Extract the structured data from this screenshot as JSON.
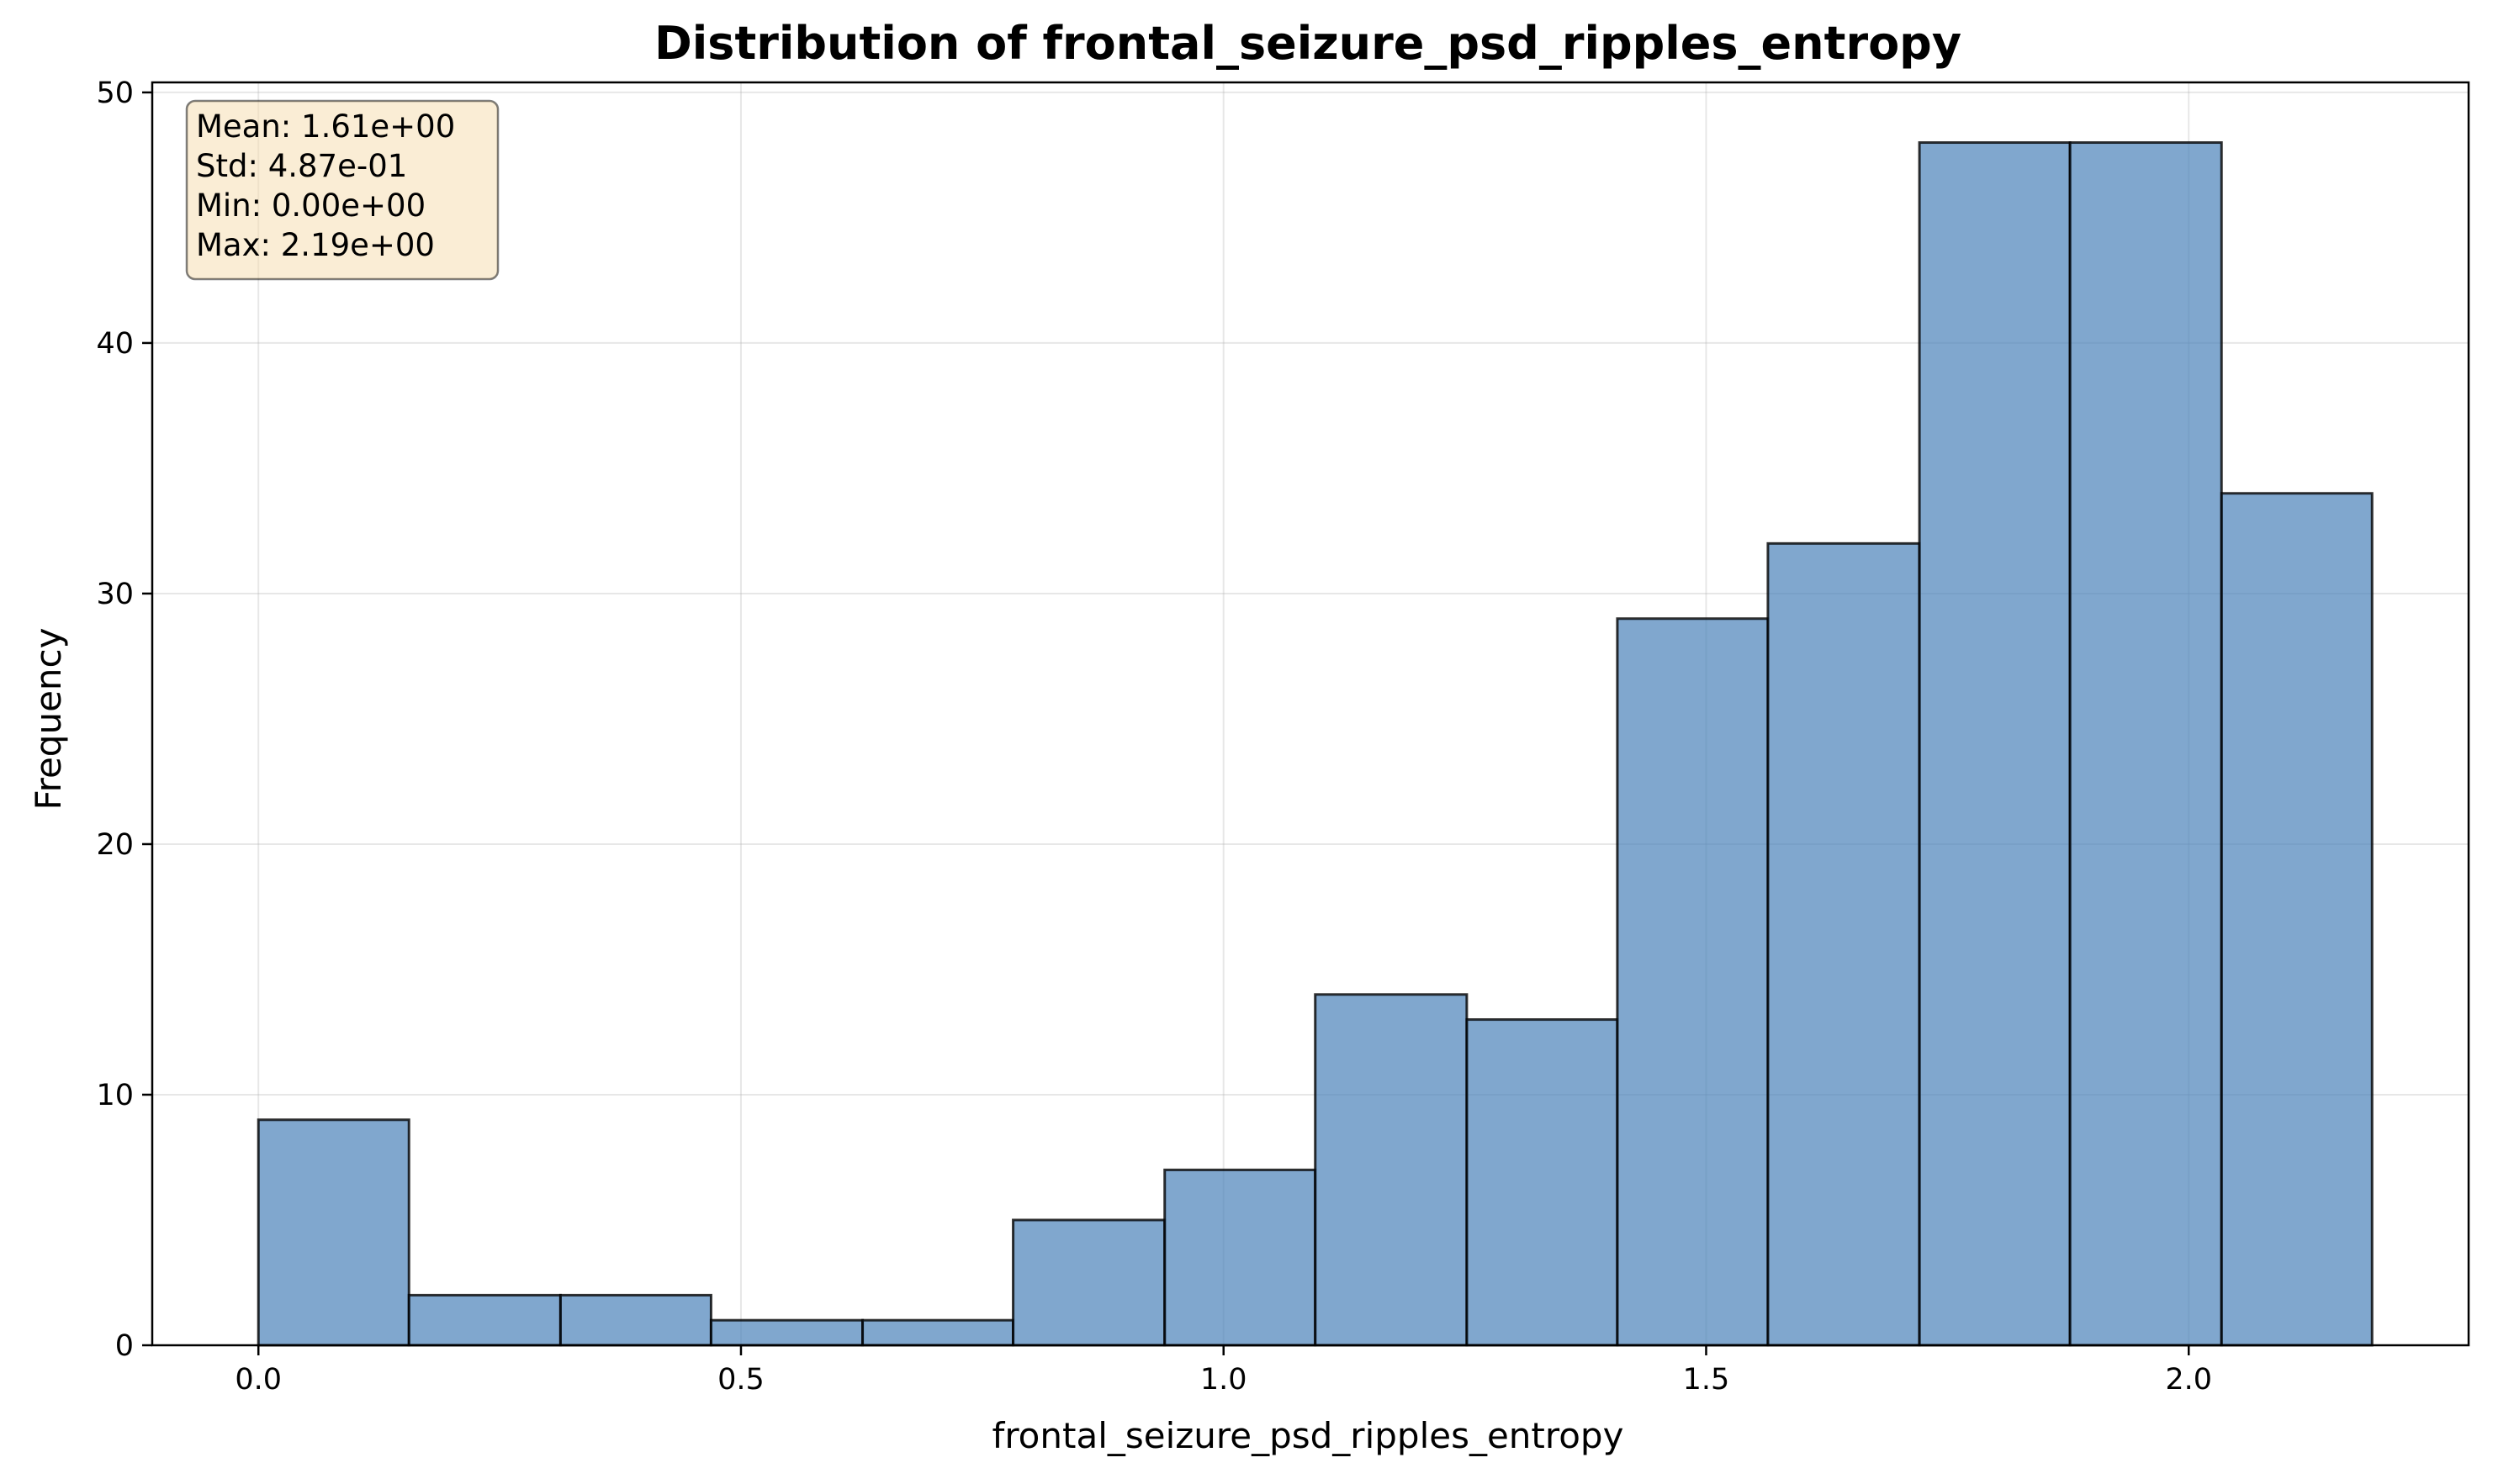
{
  "chart_data": {
    "type": "bar",
    "title": "Distribution of frontal_seizure_psd_ripples_entropy",
    "xlabel": "frontal_seizure_psd_ripples_entropy",
    "ylabel": "Frequency",
    "xlim": [
      -0.11,
      2.29
    ],
    "ylim": [
      0,
      50.4
    ],
    "xticks": [
      0.0,
      0.5,
      1.0,
      1.5,
      2.0
    ],
    "xtick_labels": [
      "0.0",
      "0.5",
      "1.0",
      "1.5",
      "2.0"
    ],
    "yticks": [
      0,
      10,
      20,
      30,
      40,
      50
    ],
    "ytick_labels": [
      "0",
      "10",
      "20",
      "30",
      "40",
      "50"
    ],
    "grid": true,
    "bin_edges": [
      0.0,
      0.156,
      0.313,
      0.469,
      0.626,
      0.782,
      0.939,
      1.095,
      1.252,
      1.408,
      1.564,
      1.721,
      1.877,
      2.034,
      2.19
    ],
    "values": [
      9,
      2,
      2,
      1,
      1,
      5,
      7,
      14,
      13,
      29,
      32,
      48,
      48,
      34
    ],
    "bar_color": "#4a81b9",
    "bar_opacity": 0.7,
    "edge_color": "#000000",
    "stats_box": {
      "placement": "top-left",
      "background": "#f5deb3",
      "lines": [
        "Mean: 1.61e+00",
        "Std: 4.87e-01",
        "Min: 0.00e+00",
        "Max: 2.19e+00"
      ]
    }
  }
}
